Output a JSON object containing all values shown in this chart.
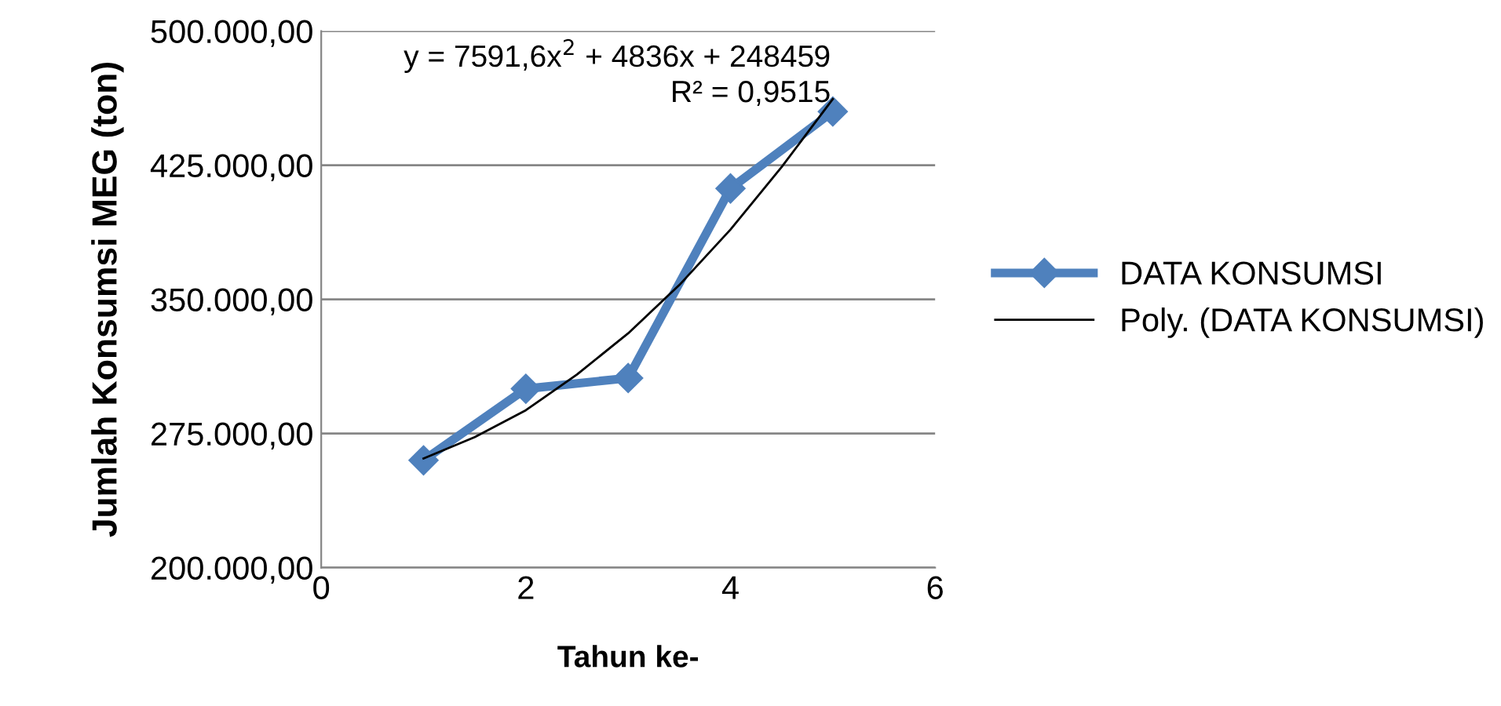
{
  "chart_data": {
    "type": "line",
    "xlabel": "Tahun ke-",
    "ylabel": "Jumlah Konsumsi MEG (ton)",
    "series": [
      {
        "name": "DATA KONSUMSI",
        "color": "#4f81bd",
        "x": [
          1,
          2,
          3,
          4,
          5
        ],
        "values": [
          260000,
          300000,
          306000,
          412000,
          455000
        ],
        "marker": "diamond"
      },
      {
        "name": "Poly. (DATA KONSUMSI)",
        "color": "#000000",
        "x": [
          1,
          1.5,
          2,
          2.5,
          3,
          3.5,
          4,
          4.5,
          5
        ],
        "values": [
          261000,
          273000,
          288000,
          308000,
          331000,
          358000,
          389000,
          424000,
          462000
        ],
        "marker": "none"
      }
    ],
    "xlim": [
      0,
      6
    ],
    "xticks": [
      0,
      2,
      4,
      6
    ],
    "ylim": [
      200000,
      500000
    ],
    "yticks": [
      {
        "value": 200000,
        "label": "200.000,00"
      },
      {
        "value": 275000,
        "label": "275.000,00"
      },
      {
        "value": 350000,
        "label": "350.000,00"
      },
      {
        "value": 425000,
        "label": "425.000,00"
      },
      {
        "value": 500000,
        "label": "500.000,00"
      }
    ],
    "grid": "y",
    "legend": "right",
    "annotations": [
      "y = 7591,6x$^{2}$ + 4836x + 248459\nR² = 0,9515"
    ]
  }
}
